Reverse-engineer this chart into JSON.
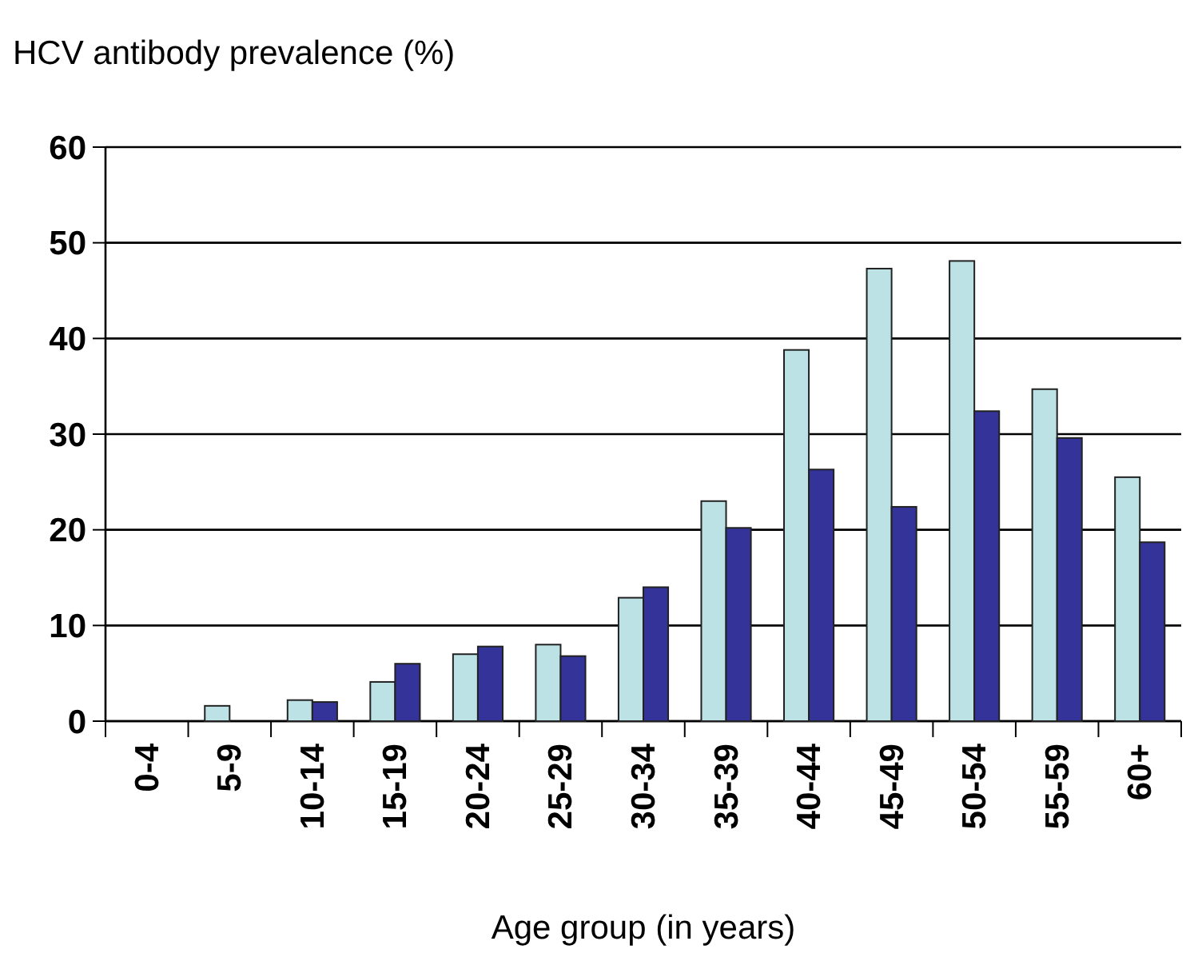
{
  "chart_data": {
    "type": "bar",
    "title": "HCV antibody prevalence (%)",
    "xlabel": "Age group (in years)",
    "categories": [
      "0-4",
      "5-9",
      "10-14",
      "15-19",
      "20-24",
      "25-29",
      "30-34",
      "35-39",
      "40-44",
      "45-49",
      "50-54",
      "55-59",
      "60+"
    ],
    "series": [
      {
        "color": "#bde2e5",
        "values": [
          0,
          1.6,
          2.2,
          4.1,
          7.0,
          8.0,
          12.9,
          23.0,
          38.8,
          47.3,
          48.1,
          34.7,
          25.5
        ]
      },
      {
        "color": "#333399",
        "values": [
          0,
          0,
          2.0,
          6.0,
          7.8,
          6.8,
          14.0,
          20.2,
          26.3,
          22.4,
          32.4,
          29.6,
          18.7
        ]
      }
    ],
    "ylim": [
      0,
      60
    ],
    "yticks": [
      0,
      10,
      20,
      30,
      40,
      50,
      60
    ],
    "grid": "y"
  }
}
